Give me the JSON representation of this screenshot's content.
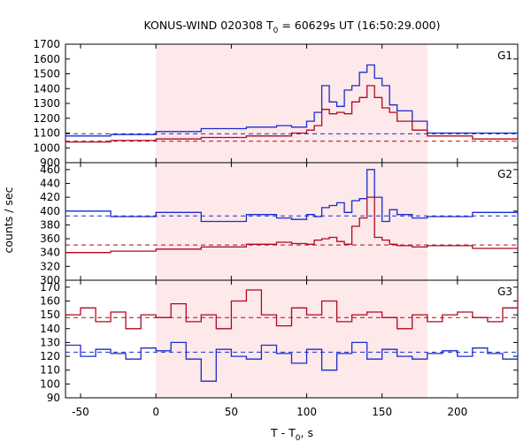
{
  "chart_data": {
    "type": "line",
    "title": "KONUS-WIND 020308 T",
    "title_sub": "0",
    "title_rest": " = 60629s UT (16:50:29.000)",
    "xlabel": "T - T",
    "xlabel_sub": "0",
    "xlabel_rest": ", s",
    "ylabel": "counts / sec",
    "xlim": [
      -60,
      240
    ],
    "x_ticks": [
      "-50",
      "0",
      "50",
      "100",
      "150",
      "200"
    ],
    "highlight_interval": [
      0,
      180
    ],
    "panels": [
      {
        "name": "G1",
        "ylim": [
          900,
          1700
        ],
        "y_ticks": [
          "900",
          "1000",
          "1100",
          "1200",
          "1300",
          "1400",
          "1500",
          "1600",
          "1700"
        ],
        "x": [
          -60,
          -30,
          0,
          30,
          60,
          80,
          90,
          100,
          105,
          110,
          115,
          120,
          125,
          130,
          135,
          140,
          145,
          150,
          155,
          160,
          170,
          180,
          210,
          240
        ],
        "series": [
          {
            "color": "#1a2ccf",
            "values": [
              1080,
              1090,
              1110,
              1130,
              1140,
              1150,
              1140,
              1180,
              1240,
              1420,
              1310,
              1280,
              1390,
              1420,
              1510,
              1560,
              1470,
              1420,
              1290,
              1250,
              1180,
              1100,
              1100,
              1090
            ],
            "background": 1095
          },
          {
            "color": "#b00a1e",
            "values": [
              1040,
              1050,
              1060,
              1070,
              1080,
              1080,
              1100,
              1120,
              1150,
              1260,
              1230,
              1240,
              1230,
              1310,
              1340,
              1420,
              1340,
              1270,
              1240,
              1180,
              1120,
              1080,
              1060,
              1060
            ],
            "background": 1045
          }
        ]
      },
      {
        "name": "G2",
        "ylim": [
          300,
          470
        ],
        "y_ticks": [
          "300",
          "320",
          "340",
          "360",
          "380",
          "400",
          "420",
          "440",
          "460"
        ],
        "x": [
          -60,
          -30,
          0,
          30,
          60,
          80,
          90,
          100,
          105,
          110,
          115,
          120,
          125,
          130,
          135,
          140,
          145,
          150,
          155,
          160,
          170,
          180,
          210,
          240
        ],
        "series": [
          {
            "color": "#1a2ccf",
            "values": [
              400,
              392,
              398,
              385,
              395,
              390,
              388,
              395,
              392,
              405,
              408,
              412,
              398,
              415,
              418,
              460,
              420,
              385,
              402,
              395,
              390,
              392,
              398,
              395
            ],
            "background": 393
          },
          {
            "color": "#b00a1e",
            "values": [
              340,
              342,
              345,
              348,
              352,
              355,
              353,
              352,
              358,
              360,
              362,
              356,
              352,
              378,
              390,
              420,
              362,
              358,
              352,
              350,
              348,
              350,
              346,
              344
            ],
            "background": 351
          }
        ]
      },
      {
        "name": "G3",
        "ylim": [
          90,
          175
        ],
        "y_ticks": [
          "90",
          "100",
          "110",
          "120",
          "130",
          "140",
          "150",
          "160",
          "170"
        ],
        "x": [
          -60,
          -50,
          -40,
          -30,
          -20,
          -10,
          0,
          10,
          20,
          30,
          40,
          50,
          60,
          70,
          80,
          90,
          100,
          110,
          120,
          130,
          140,
          150,
          160,
          170,
          180,
          190,
          200,
          210,
          220,
          230,
          240
        ],
        "series": [
          {
            "color": "#b00a1e",
            "values": [
              150,
              155,
              145,
              152,
              140,
              150,
              148,
              158,
              145,
              150,
              140,
              160,
              168,
              150,
              142,
              155,
              150,
              160,
              145,
              150,
              152,
              148,
              140,
              150,
              145,
              150,
              152,
              148,
              145,
              155,
              165
            ],
            "background": 148
          },
          {
            "color": "#1a2ccf",
            "values": [
              128,
              120,
              125,
              122,
              118,
              126,
              124,
              130,
              118,
              102,
              125,
              120,
              118,
              128,
              122,
              115,
              125,
              110,
              122,
              130,
              118,
              125,
              120,
              118,
              122,
              124,
              120,
              126,
              122,
              118,
              124
            ],
            "background": 123
          }
        ]
      }
    ]
  }
}
